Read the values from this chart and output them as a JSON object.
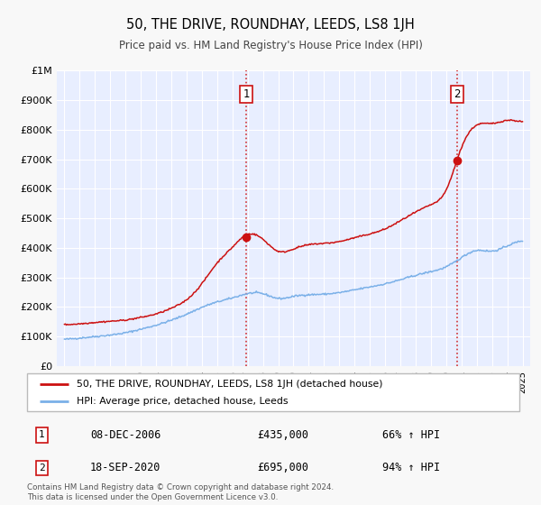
{
  "title": "50, THE DRIVE, ROUNDHAY, LEEDS, LS8 1JH",
  "subtitle": "Price paid vs. HM Land Registry's House Price Index (HPI)",
  "background_color": "#f8f8f8",
  "plot_bg_color": "#e8eeff",
  "hpi_color": "#7ab0e8",
  "price_color": "#cc1111",
  "marker_color": "#cc1111",
  "sale1_x": 2006.92,
  "sale1_y": 435000,
  "sale2_x": 2020.72,
  "sale2_y": 695000,
  "ylim": [
    0,
    1000000
  ],
  "xlim": [
    1994.5,
    2025.5
  ],
  "yticks": [
    0,
    100000,
    200000,
    300000,
    400000,
    500000,
    600000,
    700000,
    800000,
    900000,
    1000000
  ],
  "ytick_labels": [
    "£0",
    "£100K",
    "£200K",
    "£300K",
    "£400K",
    "£500K",
    "£600K",
    "£700K",
    "£800K",
    "£900K",
    "£1M"
  ],
  "xtick_years": [
    1995,
    1996,
    1997,
    1998,
    1999,
    2000,
    2001,
    2002,
    2003,
    2004,
    2005,
    2006,
    2007,
    2008,
    2009,
    2010,
    2011,
    2012,
    2013,
    2014,
    2015,
    2016,
    2017,
    2018,
    2019,
    2020,
    2021,
    2022,
    2023,
    2024,
    2025
  ],
  "legend_label_price": "50, THE DRIVE, ROUNDHAY, LEEDS, LS8 1JH (detached house)",
  "legend_label_hpi": "HPI: Average price, detached house, Leeds",
  "annotation1_date": "08-DEC-2006",
  "annotation1_price": "£435,000",
  "annotation1_hpi": "66% ↑ HPI",
  "annotation2_date": "18-SEP-2020",
  "annotation2_price": "£695,000",
  "annotation2_hpi": "94% ↑ HPI",
  "footer": "Contains HM Land Registry data © Crown copyright and database right 2024.\nThis data is licensed under the Open Government Licence v3.0.",
  "hpi_anchors_x": [
    1995,
    1996,
    1997,
    1998,
    1999,
    2000,
    2001,
    2002,
    2003,
    2004,
    2005,
    2006,
    2007,
    2008,
    2009,
    2010,
    2011,
    2012,
    2013,
    2014,
    2015,
    2016,
    2017,
    2018,
    2019,
    2020,
    2021,
    2022,
    2023,
    2024,
    2025
  ],
  "hpi_anchors_y": [
    90000,
    95000,
    100000,
    105000,
    112000,
    125000,
    138000,
    155000,
    175000,
    200000,
    218000,
    230000,
    248000,
    250000,
    222000,
    238000,
    242000,
    243000,
    248000,
    258000,
    268000,
    278000,
    292000,
    308000,
    320000,
    332000,
    368000,
    400000,
    382000,
    408000,
    428000
  ],
  "price_anchors_x": [
    1995,
    1996,
    1997,
    1998,
    1999,
    2000,
    2001,
    2002,
    2003,
    2004,
    2005,
    2006,
    2007,
    2008,
    2009,
    2010,
    2011,
    2012,
    2013,
    2014,
    2015,
    2016,
    2017,
    2018,
    2019,
    2020,
    2021,
    2022,
    2023,
    2024,
    2025
  ],
  "price_anchors_y": [
    140000,
    143000,
    148000,
    152000,
    155000,
    165000,
    175000,
    195000,
    220000,
    275000,
    355000,
    400000,
    460000,
    435000,
    375000,
    398000,
    413000,
    415000,
    420000,
    435000,
    447000,
    462000,
    492000,
    522000,
    547000,
    568000,
    760000,
    830000,
    815000,
    838000,
    825000
  ]
}
